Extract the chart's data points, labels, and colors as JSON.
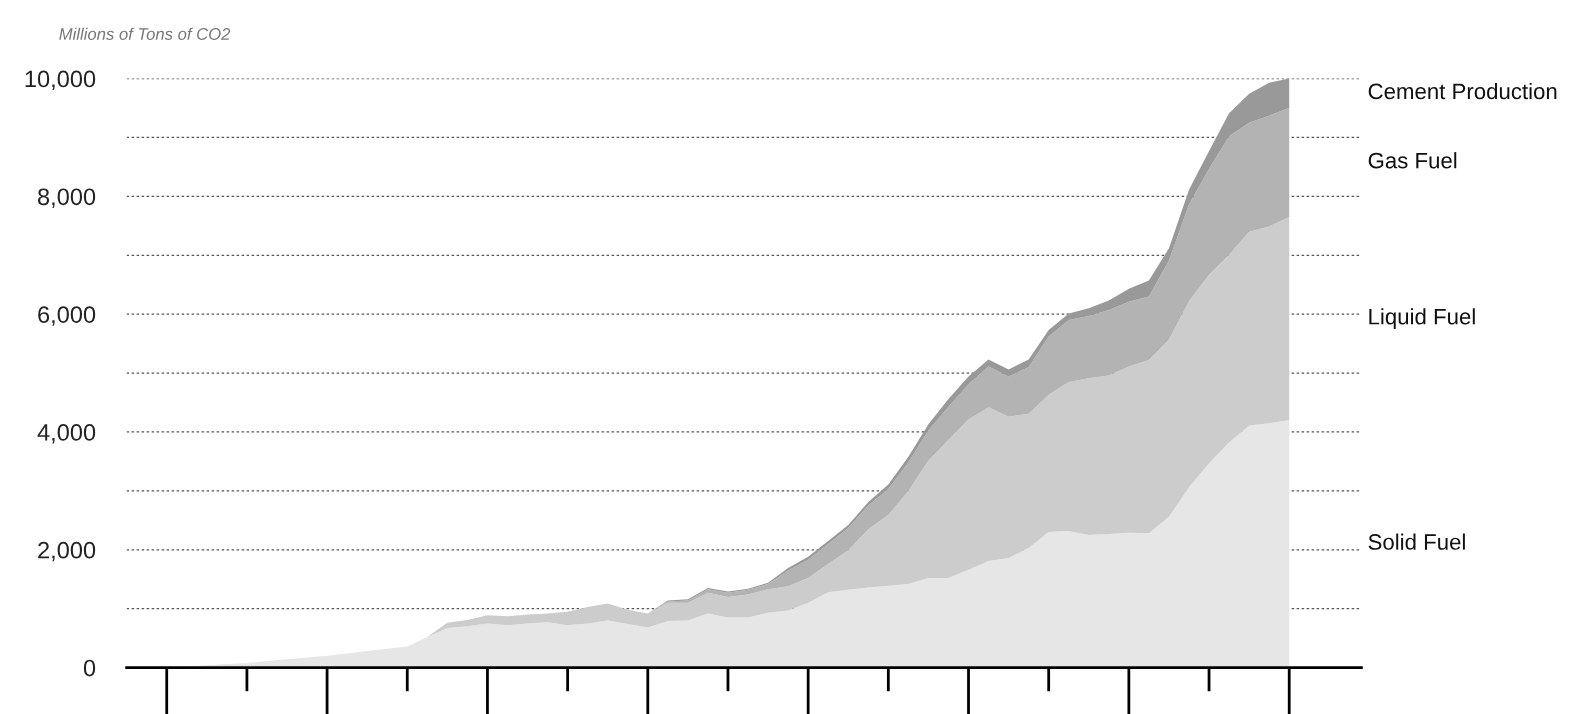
{
  "chart_data": {
    "type": "area",
    "stacked": true,
    "ylabel": "Millions of Tons of CO2",
    "categories": [
      null,
      null,
      null,
      null,
      null,
      null,
      null,
      null,
      null,
      null,
      null,
      null,
      null,
      null,
      null,
      null,
      null,
      null,
      null,
      null,
      null,
      null,
      null,
      null,
      null,
      null,
      null,
      null,
      null,
      null,
      null,
      null,
      null,
      null,
      null,
      null,
      null,
      null,
      null,
      null,
      null,
      null,
      null,
      null,
      null,
      null,
      null,
      null,
      null,
      null,
      null,
      null,
      null,
      null,
      null,
      null,
      null
    ],
    "series": [
      {
        "name": "Solid Fuel",
        "color": "#e6e6e6",
        "values": [
          0,
          20,
          40,
          60,
          80,
          110,
          140,
          170,
          200,
          240,
          280,
          320,
          360,
          520,
          670,
          700,
          750,
          720,
          750,
          770,
          720,
          750,
          800,
          740,
          680,
          790,
          800,
          920,
          850,
          850,
          930,
          970,
          1100,
          1280,
          1320,
          1360,
          1390,
          1420,
          1520,
          1520,
          1660,
          1810,
          1860,
          2030,
          2300,
          2320,
          2250,
          2270,
          2290,
          2280,
          2560,
          3060,
          3470,
          3820,
          4110,
          4150,
          4200
        ]
      },
      {
        "name": "Liquid Fuel",
        "color": "#cccccc",
        "values": [
          0,
          0,
          0,
          0,
          0,
          0,
          0,
          0,
          0,
          0,
          0,
          0,
          0,
          0,
          90,
          110,
          140,
          150,
          150,
          150,
          230,
          280,
          290,
          240,
          240,
          310,
          300,
          350,
          350,
          390,
          400,
          410,
          420,
          480,
          670,
          990,
          1200,
          1580,
          1990,
          2350,
          2550,
          2610,
          2400,
          2280,
          2330,
          2530,
          2660,
          2690,
          2820,
          2940,
          3010,
          3160,
          3200,
          3190,
          3290,
          3340,
          3450
        ]
      },
      {
        "name": "Gas Fuel",
        "color": "#b3b3b3",
        "values": [
          0,
          0,
          0,
          0,
          0,
          0,
          0,
          0,
          0,
          0,
          0,
          0,
          0,
          0,
          0,
          0,
          0,
          0,
          0,
          0,
          0,
          0,
          0,
          0,
          0,
          20,
          40,
          60,
          70,
          80,
          90,
          270,
          310,
          340,
          380,
          400,
          440,
          480,
          520,
          560,
          600,
          690,
          680,
          790,
          990,
          1050,
          1060,
          1110,
          1100,
          1080,
          1340,
          1640,
          1800,
          2010,
          1850,
          1880,
          1850
        ]
      },
      {
        "name": "Cement Production",
        "color": "#999999",
        "values": [
          0,
          0,
          0,
          0,
          0,
          0,
          0,
          0,
          0,
          0,
          0,
          0,
          0,
          0,
          0,
          0,
          0,
          0,
          0,
          0,
          0,
          0,
          0,
          0,
          0,
          20,
          20,
          20,
          20,
          20,
          20,
          40,
          50,
          50,
          50,
          60,
          80,
          100,
          100,
          130,
          130,
          120,
          120,
          130,
          110,
          110,
          130,
          160,
          220,
          270,
          210,
          250,
          300,
          390,
          490,
          560,
          500
        ]
      }
    ],
    "ylim": [
      0,
      10000
    ],
    "yticks": [
      {
        "value": 0,
        "label": "0"
      },
      {
        "value": 1000,
        "label": null
      },
      {
        "value": 2000,
        "label": "2,000"
      },
      {
        "value": 3000,
        "label": null
      },
      {
        "value": 4000,
        "label": "4,000"
      },
      {
        "value": 5000,
        "label": null
      },
      {
        "value": 6000,
        "label": "6,000"
      },
      {
        "value": 7000,
        "label": null
      },
      {
        "value": 8000,
        "label": "8,000"
      },
      {
        "value": 9000,
        "label": null
      },
      {
        "value": 10000,
        "label": "10,000"
      }
    ],
    "grid": "y",
    "tick_labels": "y"
  }
}
